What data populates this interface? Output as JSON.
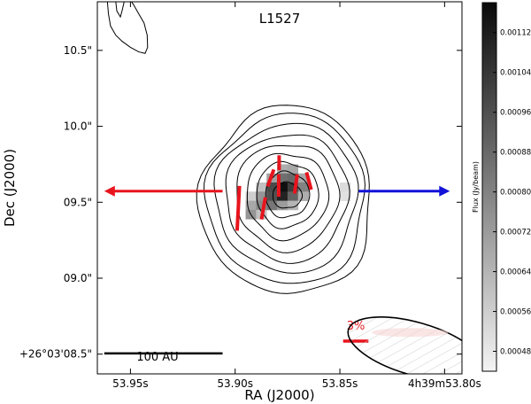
{
  "chart_data": {
    "type": "heatmap",
    "title": "L1527",
    "xlabel": "RA (J2000)",
    "ylabel": "Dec (J2000)",
    "x_ticks": [
      {
        "value": 53.95,
        "label": "53.95s"
      },
      {
        "value": 53.9,
        "label": "53.90s"
      },
      {
        "value": 53.85,
        "label": "53.85s"
      },
      {
        "value": 53.8,
        "label": "4h39m53.80s"
      }
    ],
    "y_ticks": [
      {
        "value": 8.5,
        "label": "+26°03'08.5\""
      },
      {
        "value": 9.0,
        "label": "09.0\""
      },
      {
        "value": 9.5,
        "label": "09.5\""
      },
      {
        "value": 10.0,
        "label": "10.0\""
      },
      {
        "value": 10.5,
        "label": "10.5\""
      }
    ],
    "xlim": [
      53.9658,
      53.7917
    ],
    "ylim": [
      8.37,
      10.82
    ],
    "colorbar": {
      "label": "Flux (Jy/beam)",
      "range": [
        0.00044,
        0.00118
      ],
      "ticks": [
        {
          "value": 0.00048,
          "label": "0.00048"
        },
        {
          "value": 0.00056,
          "label": "0.00056"
        },
        {
          "value": 0.00064,
          "label": "0.00064"
        },
        {
          "value": 0.00072,
          "label": "0.00072"
        },
        {
          "value": 0.0008,
          "label": "0.00080"
        },
        {
          "value": 0.00088,
          "label": "0.00088"
        },
        {
          "value": 0.00096,
          "label": "0.00096"
        },
        {
          "value": 0.00104,
          "label": "0.00104"
        },
        {
          "value": 0.00112,
          "label": "0.00112"
        }
      ]
    },
    "flux_pixels": [
      {
        "ra": 53.8775,
        "dec": 9.72,
        "flux": 0.00066
      },
      {
        "ra": 53.8725,
        "dec": 9.72,
        "flux": 0.00068
      },
      {
        "ra": 53.8825,
        "dec": 9.66,
        "flux": 0.0007
      },
      {
        "ra": 53.8775,
        "dec": 9.66,
        "flux": 0.00086
      },
      {
        "ra": 53.8725,
        "dec": 9.66,
        "flux": 0.00088
      },
      {
        "ra": 53.8675,
        "dec": 9.66,
        "flux": 0.00068
      },
      {
        "ra": 53.8875,
        "dec": 9.6,
        "flux": 0.0006
      },
      {
        "ra": 53.8825,
        "dec": 9.6,
        "flux": 0.00098
      },
      {
        "ra": 53.8775,
        "dec": 9.6,
        "flux": 0.00116
      },
      {
        "ra": 53.8725,
        "dec": 9.6,
        "flux": 0.00102
      },
      {
        "ra": 53.8675,
        "dec": 9.6,
        "flux": 0.0008
      },
      {
        "ra": 53.8475,
        "dec": 9.6,
        "flux": 0.00052
      },
      {
        "ra": 53.8925,
        "dec": 9.54,
        "flux": 0.00056
      },
      {
        "ra": 53.8875,
        "dec": 9.54,
        "flux": 0.00074
      },
      {
        "ra": 53.8825,
        "dec": 9.54,
        "flux": 0.00096
      },
      {
        "ra": 53.8775,
        "dec": 9.54,
        "flux": 0.0011
      },
      {
        "ra": 53.8725,
        "dec": 9.54,
        "flux": 0.0009
      },
      {
        "ra": 53.8675,
        "dec": 9.54,
        "flux": 0.00066
      },
      {
        "ra": 53.8475,
        "dec": 9.54,
        "flux": 0.0005
      },
      {
        "ra": 53.8925,
        "dec": 9.48,
        "flux": 0.00068
      },
      {
        "ra": 53.8875,
        "dec": 9.48,
        "flux": 0.00078
      },
      {
        "ra": 53.8825,
        "dec": 9.48,
        "flux": 0.00084
      },
      {
        "ra": 53.8775,
        "dec": 9.48,
        "flux": 0.00072
      },
      {
        "ra": 53.8725,
        "dec": 9.48,
        "flux": 0.00064
      },
      {
        "ra": 53.8925,
        "dec": 9.42,
        "flux": 0.00074
      },
      {
        "ra": 53.8875,
        "dec": 9.42,
        "flux": 0.0006
      }
    ],
    "contours": [
      {
        "ra": 53.8752,
        "dec": 9.545,
        "r_ra": 0.007,
        "r_dec": 0.085
      },
      {
        "ra": 53.8752,
        "dec": 9.55,
        "r_ra": 0.0105,
        "r_dec": 0.15
      },
      {
        "ra": 53.8752,
        "dec": 9.55,
        "r_ra": 0.0148,
        "r_dec": 0.215
      },
      {
        "ra": 53.8752,
        "dec": 9.545,
        "r_ra": 0.0195,
        "r_dec": 0.282
      },
      {
        "ra": 53.8752,
        "dec": 9.54,
        "r_ra": 0.0245,
        "r_dec": 0.352
      },
      {
        "ra": 53.8752,
        "dec": 9.535,
        "r_ra": 0.0292,
        "r_dec": 0.42
      },
      {
        "ra": 53.8752,
        "dec": 9.53,
        "r_ra": 0.0338,
        "r_dec": 0.49
      },
      {
        "ra": 53.8752,
        "dec": 9.52,
        "r_ra": 0.0378,
        "r_dec": 0.56
      },
      {
        "ra": 53.8752,
        "dec": 9.51,
        "r_ra": 0.041,
        "r_dec": 0.62
      }
    ],
    "corner_contour": [
      [
        53.961,
        10.82
      ],
      [
        53.9605,
        10.74
      ],
      [
        53.9595,
        10.66
      ],
      [
        53.957,
        10.6
      ],
      [
        53.954,
        10.56
      ],
      [
        53.95,
        10.52
      ],
      [
        53.946,
        10.49
      ],
      [
        53.943,
        10.48
      ],
      [
        53.9418,
        10.52
      ],
      [
        53.942,
        10.6
      ],
      [
        53.9435,
        10.68
      ],
      [
        53.946,
        10.74
      ],
      [
        53.9485,
        10.8
      ],
      [
        53.9495,
        10.82
      ]
    ],
    "corner_contour_inner": [
      [
        53.957,
        10.82
      ],
      [
        53.9565,
        10.76
      ],
      [
        53.9548,
        10.72
      ],
      [
        53.954,
        10.76
      ],
      [
        53.953,
        10.82
      ]
    ],
    "pol_vectors": [
      {
        "ra": 53.879,
        "dec": 9.76,
        "length_pct": 1.0,
        "angle_deg": 0
      },
      {
        "ra": 53.883,
        "dec": 9.66,
        "length_pct": 1.2,
        "angle_deg": 20
      },
      {
        "ra": 53.8792,
        "dec": 9.61,
        "length_pct": 1.5,
        "angle_deg": 0
      },
      {
        "ra": 53.871,
        "dec": 9.62,
        "length_pct": 1.3,
        "angle_deg": 8
      },
      {
        "ra": 53.8648,
        "dec": 9.64,
        "length_pct": 1.2,
        "angle_deg": -15
      },
      {
        "ra": 53.8865,
        "dec": 9.46,
        "length_pct": 1.5,
        "angle_deg": 10
      },
      {
        "ra": 53.8985,
        "dec": 9.46,
        "length_pct": 3.0,
        "angle_deg": 3
      }
    ],
    "pol_color": "#e8141d",
    "pol_scale_label": "3%",
    "pol_scale_pct": 3,
    "outflow_arrows": [
      {
        "color": "#e8141d",
        "from_ra": 53.906,
        "to_ra": 53.9625,
        "dec": 9.573
      },
      {
        "color": "#1212d8",
        "from_ra": 53.841,
        "to_ra": 53.7975,
        "dec": 9.573
      }
    ],
    "scale_bar": {
      "label": "100 AU",
      "from_ra": 53.9625,
      "to_ra": 53.906,
      "dec": 8.505
    },
    "beam": {
      "ra": 53.814,
      "dec": 8.535,
      "maj_ra": 0.0162,
      "maj_dec": 0.165,
      "hatch_color": "#c9c9c9"
    }
  }
}
